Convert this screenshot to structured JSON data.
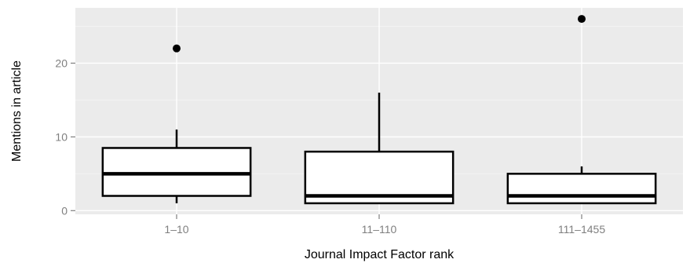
{
  "chart_data": {
    "type": "boxplot",
    "title": "",
    "xlabel": "Journal Impact Factor rank",
    "ylabel": "Mentions in article",
    "categories": [
      "1–10",
      "11–110",
      "111–1455"
    ],
    "ylim": [
      -0.5,
      27.5
    ],
    "yticks": [
      0,
      10,
      20
    ],
    "grid": true,
    "legend": "none",
    "boxes": [
      {
        "category": "1–10",
        "whisker_low": 1,
        "q1": 2,
        "median": 5,
        "q3": 8.5,
        "whisker_high": 11,
        "outliers": [
          22
        ]
      },
      {
        "category": "11–110",
        "whisker_low": 1,
        "q1": 1,
        "median": 2,
        "q3": 8,
        "whisker_high": 16,
        "outliers": []
      },
      {
        "category": "111–1455",
        "whisker_low": 1,
        "q1": 1,
        "median": 2,
        "q3": 5,
        "whisker_high": 6,
        "outliers": [
          26
        ]
      }
    ],
    "colors": {
      "panel": "#ebebeb",
      "grid": "#ffffff",
      "box_fill": "#ffffff",
      "box_stroke": "#000000",
      "tick_text": "#7f7f7f"
    }
  }
}
